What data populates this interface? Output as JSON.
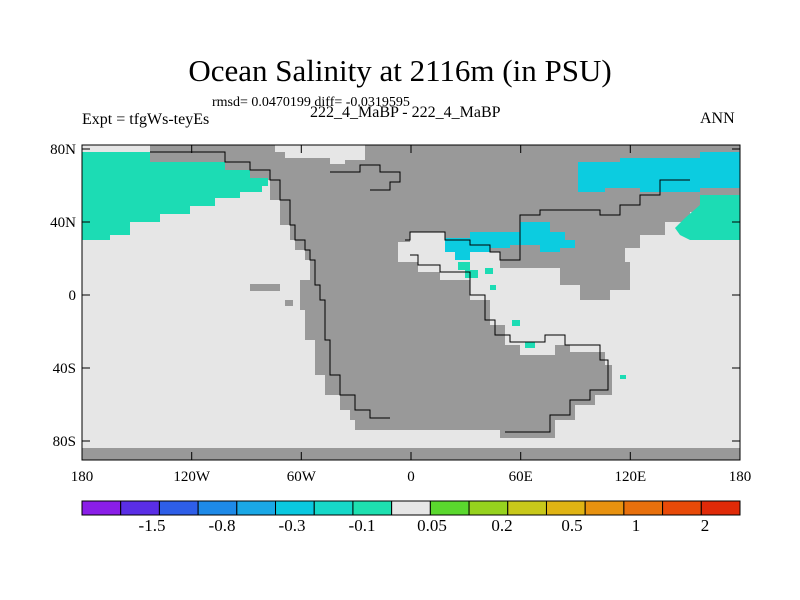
{
  "title": "Ocean Salinity at 2116m (in PSU)",
  "subtitle": "rmsd= 0.0470199 diff= -0.0319595",
  "left_label": "Expt = tfgWs-teyEs",
  "center_label": "222_4_MaBP - 222_4_MaBP",
  "right_label": "ANN",
  "map": {
    "lat_ticks": [
      "80N",
      "40N",
      "0",
      "40S",
      "80S"
    ],
    "lon_ticks": [
      "180",
      "120W",
      "60W",
      "0",
      "60E",
      "120E",
      "180"
    ]
  },
  "colorbar": {
    "colors": [
      "#8a1ee8",
      "#5a2ee6",
      "#2e5ee8",
      "#1e8ae8",
      "#1aa8e6",
      "#0ac8e0",
      "#16d8c8",
      "#1ee0b0",
      "#e6e6e6",
      "#5ad82e",
      "#96d21e",
      "#c8c81a",
      "#e0b414",
      "#e89210",
      "#e8700c",
      "#e84a08",
      "#e02a08"
    ],
    "labels": [
      "-1.5",
      "-0.8",
      "-0.3",
      "-0.1",
      "0.05",
      "0.2",
      "0.5",
      "1",
      "2"
    ]
  },
  "colors": {
    "ocean_neutral": "#e6e6e6",
    "land": "#999999",
    "fresher": "#1cdcb4",
    "fresher_strong": "#0ccce0"
  }
}
